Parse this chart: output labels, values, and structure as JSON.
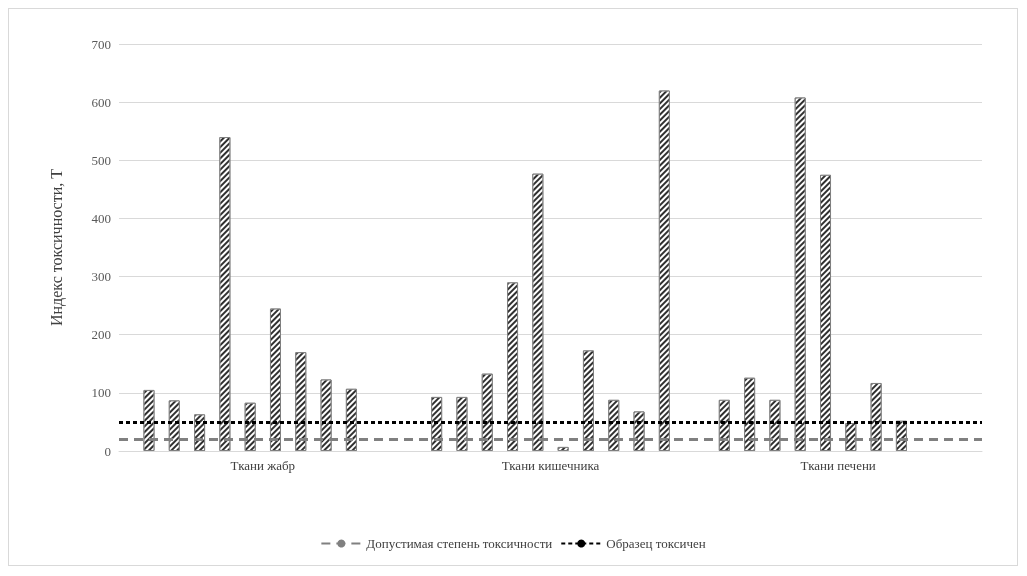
{
  "chart_data": {
    "type": "bar",
    "ylabel": "Индекс токсичности, T",
    "categories": [
      "Ткани жабр",
      "Ткани кишечника",
      "Ткани печени"
    ],
    "series": [
      {
        "color": "#303030",
        "values": [
          105,
          93,
          88
        ]
      },
      {
        "color": "#303030",
        "values": [
          87,
          93,
          126
        ]
      },
      {
        "color": "#303030",
        "values": [
          63,
          133,
          88
        ]
      },
      {
        "color": "#303030",
        "values": [
          540,
          290,
          608
        ]
      },
      {
        "color": "#303030",
        "values": [
          83,
          477,
          475
        ]
      },
      {
        "color": "#303030",
        "values": [
          245,
          7,
          48
        ]
      },
      {
        "color": "#303030",
        "values": [
          170,
          173,
          117
        ]
      },
      {
        "color": "#303030",
        "values": [
          123,
          88,
          52
        ]
      },
      {
        "color": "#303030",
        "values": [
          107,
          68,
          null
        ]
      },
      {
        "color": "#303030",
        "values": [
          null,
          620,
          null
        ]
      }
    ],
    "ylim": [
      0,
      700
    ],
    "yticks": [
      0,
      100,
      200,
      300,
      400,
      500,
      600,
      700
    ],
    "grid": "y",
    "ref_lines": [
      {
        "axis": "y",
        "value": 20,
        "label": "Допустимая степень токсичности",
        "color": "#808080",
        "line_style": "dashed"
      },
      {
        "axis": "y",
        "value": 50,
        "label": "Образец токсичен",
        "color": "#000000",
        "line_style": "dotted"
      }
    ],
    "legend": "bottom"
  }
}
